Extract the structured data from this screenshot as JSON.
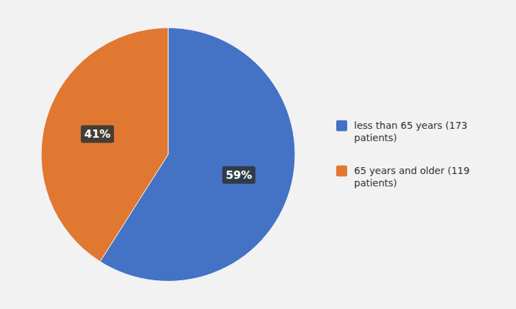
{
  "chart_data": {
    "type": "pie",
    "categories": [
      "less than 65 years (173\npatients)",
      "65 years and older (119\npatients)"
    ],
    "values": [
      59,
      41
    ],
    "value_labels": [
      "59%",
      "41%"
    ],
    "data_labels": true,
    "colors": [
      "#4472C4",
      "#E07832"
    ],
    "legend": "right"
  }
}
